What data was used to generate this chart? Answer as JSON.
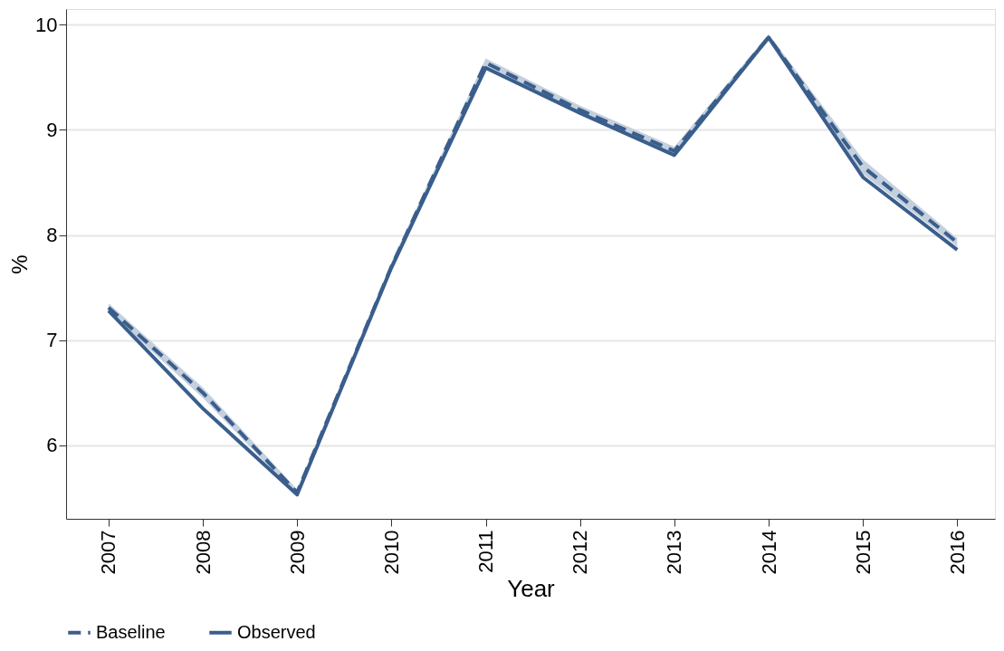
{
  "chart_data": {
    "type": "line",
    "xlabel": "Year",
    "ylabel": "%",
    "categories": [
      "2007",
      "2008",
      "2009",
      "2010",
      "2011",
      "2012",
      "2013",
      "2014",
      "2015",
      "2016"
    ],
    "series": [
      {
        "name": "Baseline",
        "color": "#3a5e8c",
        "line_style": "dashed",
        "values": [
          7.31,
          6.5,
          5.55,
          7.7,
          9.64,
          9.19,
          8.8,
          9.88,
          8.65,
          7.93
        ],
        "lower": [
          7.27,
          6.45,
          5.52,
          7.66,
          9.6,
          9.15,
          8.76,
          9.85,
          8.58,
          7.89
        ],
        "upper": [
          7.35,
          6.55,
          5.58,
          7.74,
          9.68,
          9.23,
          8.84,
          9.91,
          8.72,
          7.97
        ]
      },
      {
        "name": "Observed",
        "color": "#3a5e8c",
        "line_style": "solid",
        "values": [
          7.28,
          6.35,
          5.53,
          7.69,
          9.59,
          9.16,
          8.76,
          9.88,
          8.55,
          7.86
        ]
      }
    ],
    "ylim": [
      5.3,
      10.15
    ],
    "yticks": [
      6,
      7,
      8,
      9,
      10
    ],
    "grid": "y",
    "legend": "bottom",
    "marker": "none"
  }
}
